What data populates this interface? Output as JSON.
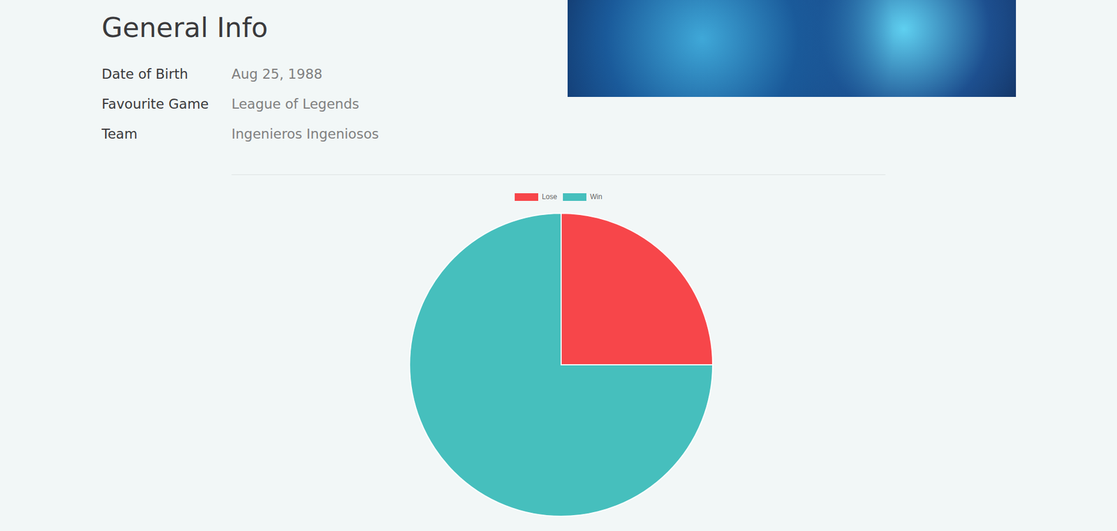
{
  "header": {
    "title": "General Info"
  },
  "info": {
    "rows": [
      [
        "Date of Birth",
        "Aug 25, 1988"
      ],
      [
        "Favourite Game",
        "League of Legends"
      ],
      [
        "Team",
        "Ingenieros Ingeniosos"
      ]
    ]
  },
  "chart_data": {
    "type": "pie",
    "categories": [
      "Lose",
      "Win"
    ],
    "values": [
      25,
      75
    ],
    "colors": [
      "#f7464a",
      "#46bfbd"
    ],
    "legend": "top"
  }
}
